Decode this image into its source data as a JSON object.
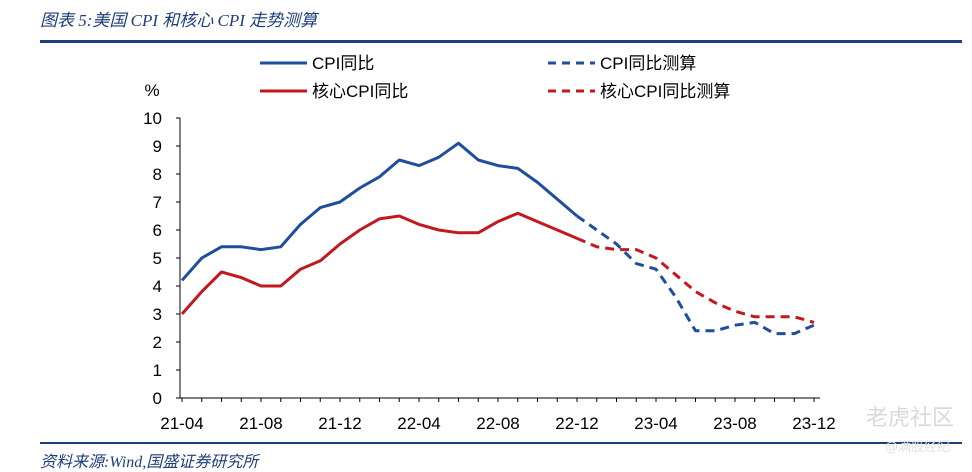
{
  "figure_title": "图表 5:美国 CPI 和核心 CPI 走势测算",
  "source": "资料来源:Wind,国盛证券研究所",
  "watermark": "老虎社区",
  "watermark_sub": "@满股经纪",
  "colors": {
    "blue": "#1f4e9c",
    "red": "#c0191f",
    "navy": "#1f3f7a"
  },
  "chart_data": {
    "type": "line",
    "ylabel": "%",
    "ylim": [
      0,
      10
    ],
    "yticks": [
      0,
      1,
      2,
      3,
      4,
      5,
      6,
      7,
      8,
      9,
      10
    ],
    "x": [
      "2021-04",
      "2021-05",
      "2021-06",
      "2021-07",
      "2021-08",
      "2021-09",
      "2021-10",
      "2021-11",
      "2021-12",
      "2022-01",
      "2022-02",
      "2022-03",
      "2022-04",
      "2022-05",
      "2022-06",
      "2022-07",
      "2022-08",
      "2022-09",
      "2022-10",
      "2022-11",
      "2022-12",
      "2023-01",
      "2023-02",
      "2023-03",
      "2023-04",
      "2023-05",
      "2023-06",
      "2023-07",
      "2023-08",
      "2023-09",
      "2023-10",
      "2023-11",
      "2023-12"
    ],
    "xtick_labels": [
      "21-04",
      "21-08",
      "21-12",
      "22-04",
      "22-08",
      "22-12",
      "23-04",
      "23-08",
      "23-12"
    ],
    "xtick_indices": [
      0,
      4,
      8,
      12,
      16,
      20,
      24,
      28,
      32
    ],
    "grid": false,
    "legend_position": "top",
    "series": [
      {
        "name": "CPI同比",
        "color": "#1f4e9c",
        "dashed": false,
        "values": [
          4.2,
          5.0,
          5.4,
          5.4,
          5.3,
          5.4,
          6.2,
          6.8,
          7.0,
          7.5,
          7.9,
          8.5,
          8.3,
          8.6,
          9.1,
          8.5,
          8.3,
          8.2,
          7.7,
          7.1,
          6.5,
          null,
          null,
          null,
          null,
          null,
          null,
          null,
          null,
          null,
          null,
          null,
          null
        ]
      },
      {
        "name": "CPI同比测算",
        "color": "#1f4e9c",
        "dashed": true,
        "values": [
          null,
          null,
          null,
          null,
          null,
          null,
          null,
          null,
          null,
          null,
          null,
          null,
          null,
          null,
          null,
          null,
          null,
          null,
          null,
          null,
          6.5,
          6.0,
          5.5,
          4.8,
          4.6,
          3.6,
          2.4,
          2.4,
          2.6,
          2.7,
          2.3,
          2.3,
          2.6
        ]
      },
      {
        "name": "核心CPI同比",
        "color": "#c0191f",
        "dashed": false,
        "values": [
          3.0,
          3.8,
          4.5,
          4.3,
          4.0,
          4.0,
          4.6,
          4.9,
          5.5,
          6.0,
          6.4,
          6.5,
          6.2,
          6.0,
          5.9,
          5.9,
          6.3,
          6.6,
          6.3,
          6.0,
          5.7,
          null,
          null,
          null,
          null,
          null,
          null,
          null,
          null,
          null,
          null,
          null,
          null
        ]
      },
      {
        "name": "核心CPI同比测算",
        "color": "#c0191f",
        "dashed": true,
        "values": [
          null,
          null,
          null,
          null,
          null,
          null,
          null,
          null,
          null,
          null,
          null,
          null,
          null,
          null,
          null,
          null,
          null,
          null,
          null,
          null,
          5.7,
          5.4,
          5.3,
          5.3,
          5.0,
          4.4,
          3.8,
          3.4,
          3.1,
          2.9,
          2.9,
          2.9,
          2.7
        ]
      }
    ]
  }
}
